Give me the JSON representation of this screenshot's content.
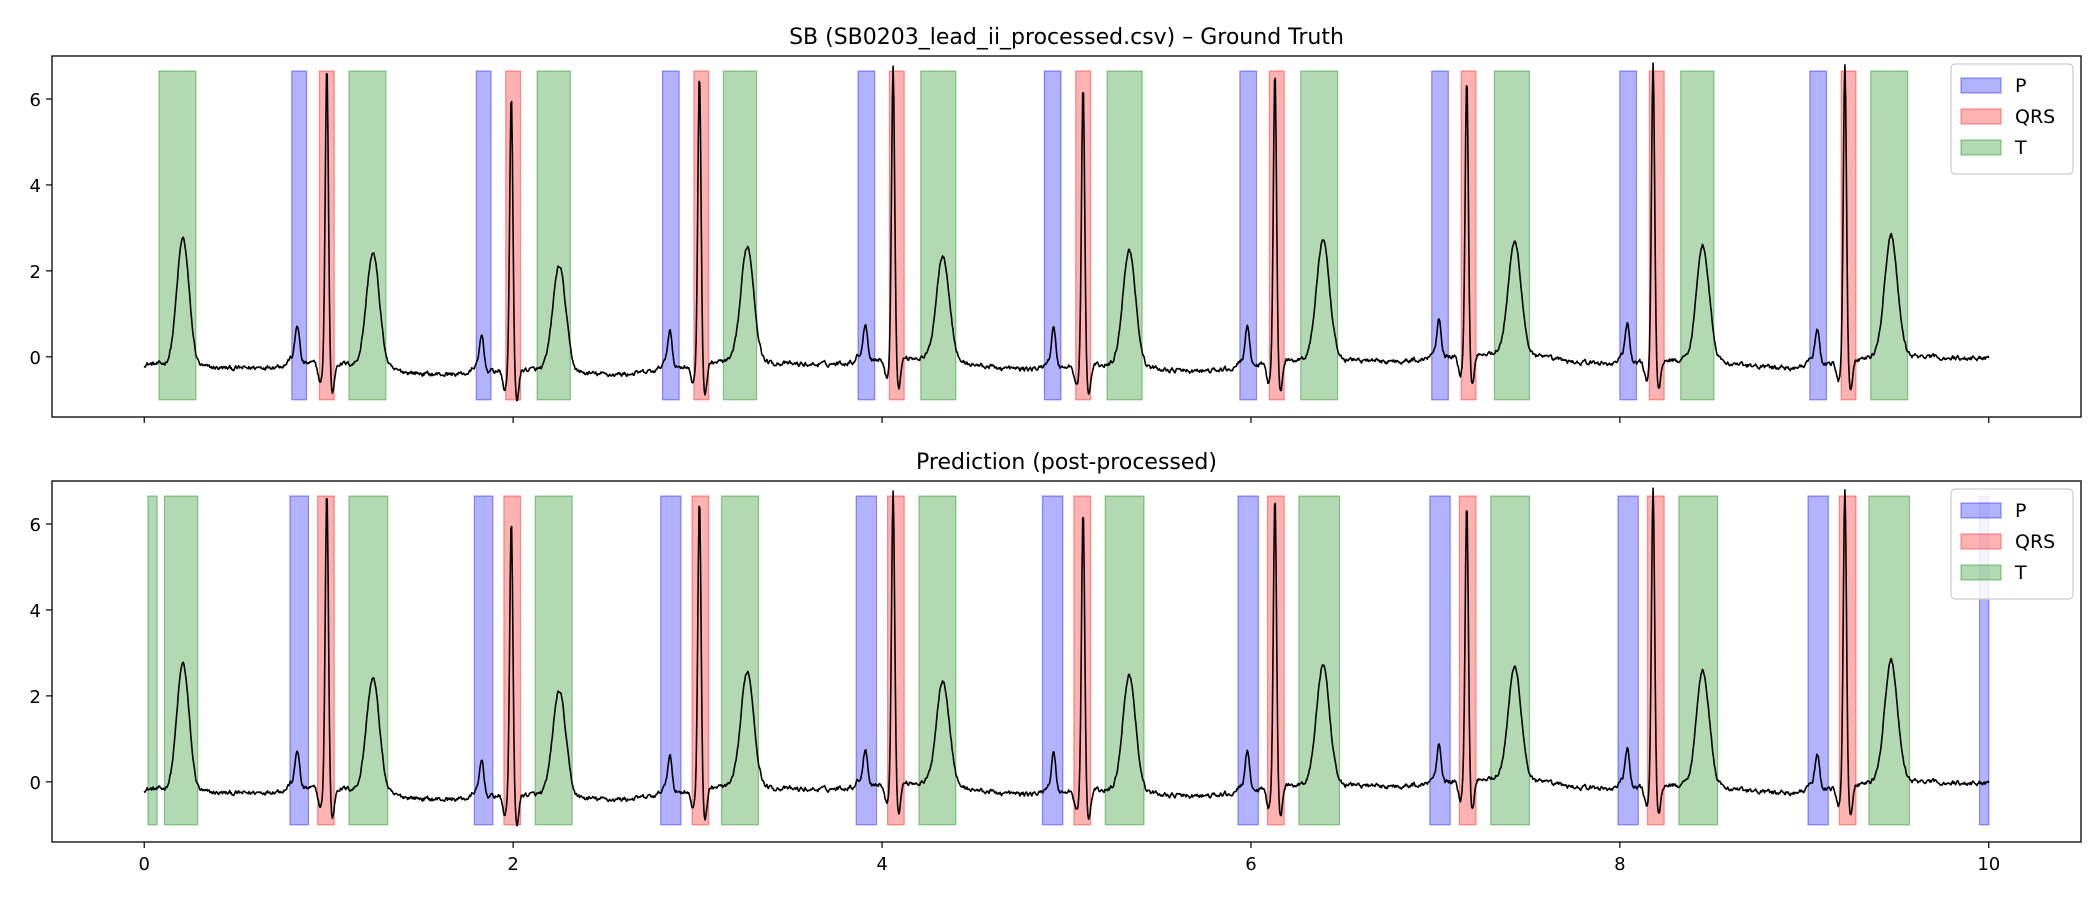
{
  "chart_data": [
    {
      "type": "area",
      "title": "SB (SB0203_lead_ii_processed.csv) – Ground Truth",
      "xlabel": "",
      "ylabel": "",
      "xlim": [
        -0.5,
        10.5
      ],
      "ylim": [
        -1.4,
        7.0
      ],
      "xticks": [
        0,
        2,
        4,
        6,
        8,
        10
      ],
      "yticks": [
        0,
        2,
        4,
        6
      ],
      "show_xtick_labels": false,
      "grid": false,
      "legend_position": "top-right",
      "legend": [
        "P",
        "QRS",
        "T"
      ],
      "band_range": [
        -1.0,
        6.65
      ],
      "segments": {
        "P": [
          [
            0.8,
            0.88
          ],
          [
            1.8,
            1.88
          ],
          [
            2.81,
            2.9
          ],
          [
            3.87,
            3.96
          ],
          [
            4.88,
            4.97
          ],
          [
            5.94,
            6.03
          ],
          [
            6.98,
            7.07
          ],
          [
            8.0,
            8.09
          ],
          [
            9.03,
            9.12
          ]
        ],
        "QRS": [
          [
            0.95,
            1.03
          ],
          [
            1.96,
            2.04
          ],
          [
            2.98,
            3.06
          ],
          [
            4.04,
            4.12
          ],
          [
            5.05,
            5.13
          ],
          [
            6.1,
            6.18
          ],
          [
            7.14,
            7.22
          ],
          [
            8.16,
            8.24
          ],
          [
            9.2,
            9.28
          ]
        ],
        "T": [
          [
            0.08,
            0.28
          ],
          [
            1.11,
            1.31
          ],
          [
            2.13,
            2.31
          ],
          [
            3.14,
            3.32
          ],
          [
            4.21,
            4.4
          ],
          [
            5.22,
            5.41
          ],
          [
            6.27,
            6.47
          ],
          [
            7.32,
            7.51
          ],
          [
            8.33,
            8.51
          ],
          [
            9.36,
            9.56
          ]
        ]
      },
      "beats": [
        {
          "p": 0.83,
          "r": 0.99,
          "t": 1.24,
          "pa": 0.5,
          "ra": 6.6,
          "ta": 2.35
        },
        {
          "p": 1.83,
          "r": 1.99,
          "t": 2.25,
          "pa": 0.45,
          "ra": 6.1,
          "ta": 2.15
        },
        {
          "p": 2.85,
          "r": 3.01,
          "t": 3.27,
          "pa": 0.5,
          "ra": 6.45,
          "ta": 2.38
        },
        {
          "p": 3.91,
          "r": 4.06,
          "t": 4.33,
          "pa": 0.45,
          "ra": 6.45,
          "ta": 2.15
        },
        {
          "p": 4.93,
          "r": 5.09,
          "t": 5.34,
          "pa": 0.5,
          "ra": 6.2,
          "ta": 2.4
        },
        {
          "p": 5.98,
          "r": 6.13,
          "t": 6.39,
          "pa": 0.5,
          "ra": 6.45,
          "ta": 2.45
        },
        {
          "p": 7.02,
          "r": 7.17,
          "t": 7.43,
          "pa": 0.5,
          "ra": 6.1,
          "ta": 2.3
        },
        {
          "p": 8.04,
          "r": 8.18,
          "t": 8.45,
          "pa": 0.5,
          "ra": 6.6,
          "ta": 2.38
        },
        {
          "p": 9.07,
          "r": 9.22,
          "t": 9.47,
          "pa": 0.45,
          "ra": 6.6,
          "ta": 2.5
        }
      ],
      "initial_t_wave": {
        "t": 0.21,
        "ta": 2.65
      }
    },
    {
      "type": "area",
      "title": "Prediction (post-processed)",
      "xlabel": "",
      "ylabel": "",
      "xlim": [
        -0.5,
        10.5
      ],
      "ylim": [
        -1.4,
        7.0
      ],
      "xticks": [
        0,
        2,
        4,
        6,
        8,
        10
      ],
      "yticks": [
        0,
        2,
        4,
        6
      ],
      "show_xtick_labels": true,
      "grid": false,
      "legend_position": "top-right",
      "legend": [
        "P",
        "QRS",
        "T"
      ],
      "band_range": [
        -1.0,
        6.65
      ],
      "segments": {
        "P": [
          [
            0.79,
            0.89
          ],
          [
            1.79,
            1.89
          ],
          [
            2.8,
            2.91
          ],
          [
            3.86,
            3.97
          ],
          [
            4.87,
            4.98
          ],
          [
            5.93,
            6.04
          ],
          [
            6.97,
            7.08
          ],
          [
            7.99,
            8.1
          ],
          [
            9.02,
            9.13
          ],
          [
            9.95,
            10.0
          ]
        ],
        "QRS": [
          [
            0.94,
            1.03
          ],
          [
            1.95,
            2.04
          ],
          [
            2.97,
            3.06
          ],
          [
            4.03,
            4.12
          ],
          [
            5.04,
            5.13
          ],
          [
            6.09,
            6.18
          ],
          [
            7.13,
            7.22
          ],
          [
            8.15,
            8.24
          ],
          [
            9.19,
            9.28
          ]
        ],
        "T": [
          [
            0.02,
            0.07
          ],
          [
            0.11,
            0.29
          ],
          [
            1.11,
            1.32
          ],
          [
            2.12,
            2.32
          ],
          [
            3.13,
            3.33
          ],
          [
            4.2,
            4.4
          ],
          [
            5.21,
            5.42
          ],
          [
            6.26,
            6.48
          ],
          [
            7.3,
            7.51
          ],
          [
            8.32,
            8.53
          ],
          [
            9.35,
            9.57
          ]
        ]
      },
      "beats": [
        {
          "p": 0.83,
          "r": 0.99,
          "t": 1.24,
          "pa": 0.5,
          "ra": 6.6,
          "ta": 2.35
        },
        {
          "p": 1.83,
          "r": 1.99,
          "t": 2.25,
          "pa": 0.45,
          "ra": 6.1,
          "ta": 2.15
        },
        {
          "p": 2.85,
          "r": 3.01,
          "t": 3.27,
          "pa": 0.5,
          "ra": 6.45,
          "ta": 2.38
        },
        {
          "p": 3.91,
          "r": 4.06,
          "t": 4.33,
          "pa": 0.45,
          "ra": 6.45,
          "ta": 2.15
        },
        {
          "p": 4.93,
          "r": 5.09,
          "t": 5.34,
          "pa": 0.5,
          "ra": 6.2,
          "ta": 2.4
        },
        {
          "p": 5.98,
          "r": 6.13,
          "t": 6.39,
          "pa": 0.5,
          "ra": 6.45,
          "ta": 2.45
        },
        {
          "p": 7.02,
          "r": 7.17,
          "t": 7.43,
          "pa": 0.5,
          "ra": 6.1,
          "ta": 2.3
        },
        {
          "p": 8.04,
          "r": 8.18,
          "t": 8.45,
          "pa": 0.5,
          "ra": 6.6,
          "ta": 2.38
        },
        {
          "p": 9.07,
          "r": 9.22,
          "t": 9.47,
          "pa": 0.45,
          "ra": 6.6,
          "ta": 2.5
        }
      ],
      "initial_t_wave": {
        "t": 0.21,
        "ta": 2.65
      }
    }
  ],
  "colors": {
    "P_fill": "#0000ff",
    "P_edge": "#0000ff",
    "QRS_fill": "#ff0000",
    "QRS_edge": "#ff0000",
    "T_fill": "#008000",
    "T_edge": "#008000",
    "signal": "#000000",
    "axes": "#000000",
    "legend_border": "#cccccc"
  }
}
